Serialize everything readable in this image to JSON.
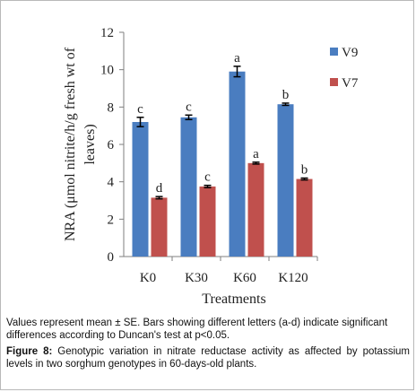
{
  "chart_data": {
    "type": "bar",
    "categories": [
      "K0",
      "K30",
      "K60",
      "K120"
    ],
    "series": [
      {
        "name": "V9",
        "color": "#4a7dc0",
        "values": [
          7.2,
          7.45,
          9.9,
          8.15
        ],
        "errors": [
          0.25,
          0.12,
          0.28,
          0.06
        ],
        "letters": [
          "c",
          "c",
          "a",
          "b"
        ]
      },
      {
        "name": "V7",
        "color": "#c0504d",
        "values": [
          3.15,
          3.75,
          5.0,
          4.15
        ],
        "errors": [
          0.06,
          0.06,
          0.05,
          0.05
        ],
        "letters": [
          "d",
          "c",
          "a",
          "b"
        ]
      }
    ],
    "xlabel": "Treatments",
    "ylabel_line1": "NRA (μmol nitrite/h/g fresh wt of",
    "ylabel_line2": "leaves)",
    "ylim": [
      0,
      12
    ],
    "yticks": [
      0,
      2,
      4,
      6,
      8,
      10,
      12
    ],
    "ytick_labels": [
      "0",
      "2",
      "4",
      "6",
      "8",
      "10",
      "12"
    ],
    "grid": false,
    "legend_position": "right"
  },
  "note": "Values represent mean ± SE. Bars showing different  letters (a-d) indicate significant differences according to Duncan's test at p<0.05.",
  "caption": {
    "label": "Figure 8:",
    "text": " Genotypic variation in nitrate reductase activity as affected by potassium levels in two sorghum genotypes in 60-days-old plants."
  }
}
